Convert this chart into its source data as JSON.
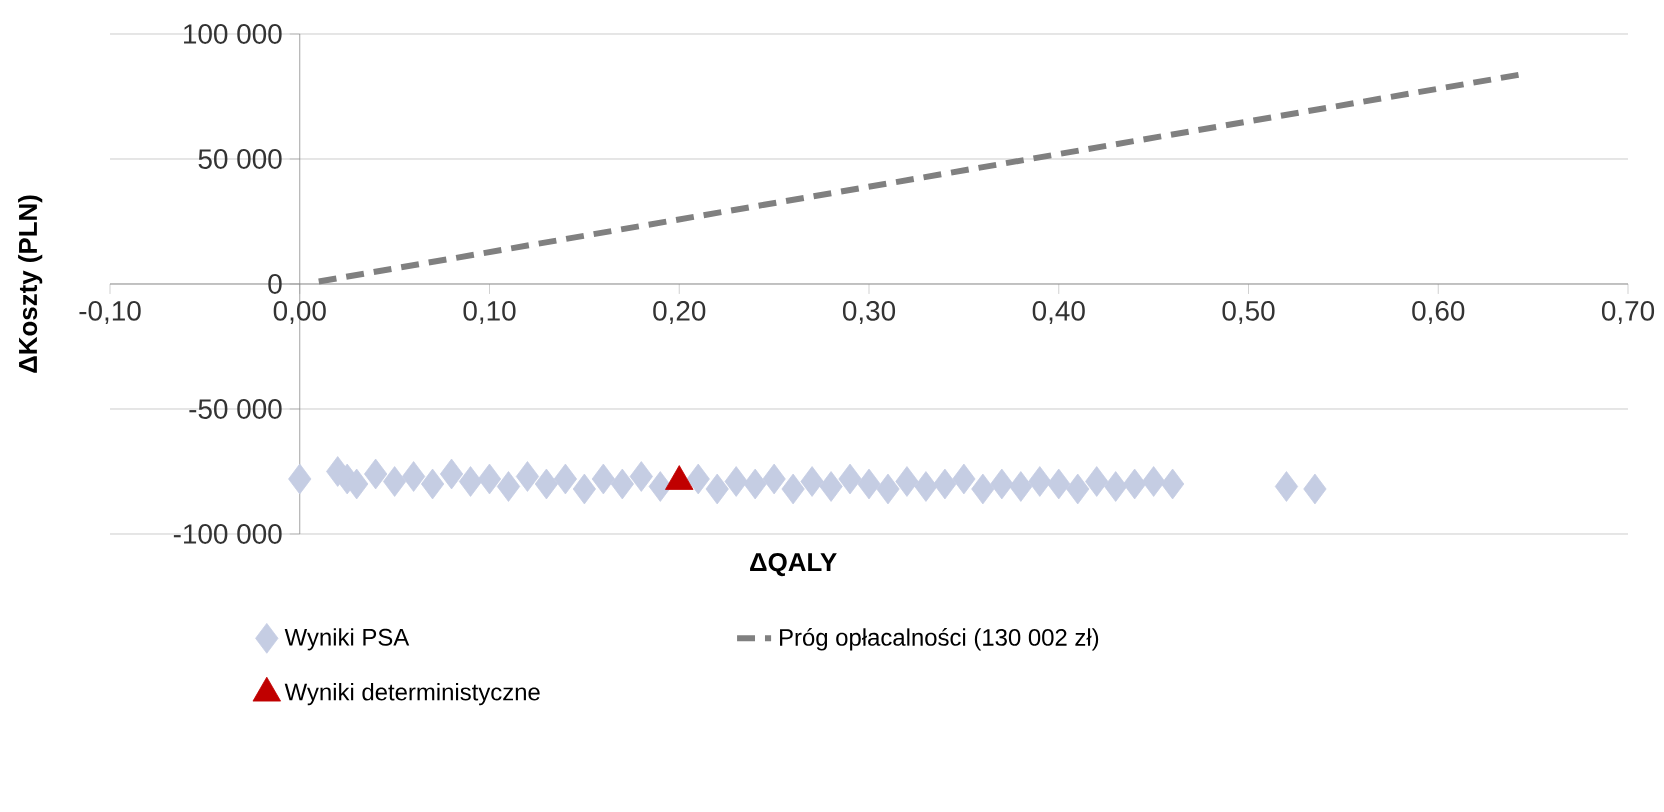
{
  "chart_data": {
    "type": "scatter",
    "xlabel": "ΔQALY",
    "ylabel": "ΔKoszty (PLN)",
    "xlim": [
      -0.1,
      0.7
    ],
    "ylim": [
      -100000,
      100000
    ],
    "xticks": [
      {
        "value": -0.1,
        "label": "-0,10"
      },
      {
        "value": 0,
        "label": "0,00"
      },
      {
        "value": 0.1,
        "label": "0,10"
      },
      {
        "value": 0.2,
        "label": "0,20"
      },
      {
        "value": 0.3,
        "label": "0,30"
      },
      {
        "value": 0.4,
        "label": "0,40"
      },
      {
        "value": 0.5,
        "label": "0,50"
      },
      {
        "value": 0.6,
        "label": "0,60"
      },
      {
        "value": 0.7,
        "label": "0,70"
      }
    ],
    "yticks": [
      {
        "value": -100000,
        "label": "-100 000"
      },
      {
        "value": -50000,
        "label": "-50 000"
      },
      0,
      {
        "value": 50000,
        "label": "50 000"
      },
      {
        "value": 100000,
        "label": "100 000"
      }
    ],
    "grid": "y",
    "legend": "bottom",
    "series": [
      {
        "name": "Wyniki PSA",
        "marker": "diamond",
        "color": "#c5cde3",
        "x": [
          0.0,
          0.02,
          0.025,
          0.03,
          0.04,
          0.05,
          0.06,
          0.07,
          0.08,
          0.09,
          0.1,
          0.11,
          0.12,
          0.13,
          0.14,
          0.15,
          0.16,
          0.17,
          0.18,
          0.19,
          0.2,
          0.21,
          0.22,
          0.23,
          0.24,
          0.25,
          0.26,
          0.27,
          0.28,
          0.29,
          0.3,
          0.31,
          0.32,
          0.33,
          0.34,
          0.35,
          0.36,
          0.37,
          0.38,
          0.39,
          0.4,
          0.41,
          0.42,
          0.43,
          0.44,
          0.45,
          0.46,
          0.52,
          0.535
        ],
        "values": [
          -78000,
          -75000,
          -78000,
          -80000,
          -76000,
          -79000,
          -77000,
          -80000,
          -76000,
          -79000,
          -78000,
          -81000,
          -77000,
          -80000,
          -78000,
          -82000,
          -78000,
          -80000,
          -77000,
          -81000,
          null,
          -78000,
          -82000,
          -79000,
          -80000,
          -78000,
          -82000,
          -79000,
          -81000,
          -78000,
          -80000,
          -82000,
          -79000,
          -81000,
          -80000,
          -78000,
          -82000,
          -80000,
          -81000,
          -79000,
          -80000,
          -82000,
          -79000,
          -81000,
          -80000,
          -79000,
          -80000,
          -81000,
          -82000
        ]
      },
      {
        "name": "Próg opłacalności (130 002 zł)",
        "type": "line",
        "line_style": "dashed",
        "color": "#808080",
        "x": [
          0.01,
          0.645
        ],
        "values": [
          1000,
          84000
        ]
      },
      {
        "name": "Wyniki deterministyczne",
        "marker": "triangle",
        "color": "#c00000",
        "x": [
          0.2
        ],
        "values": [
          -79000
        ]
      }
    ]
  }
}
